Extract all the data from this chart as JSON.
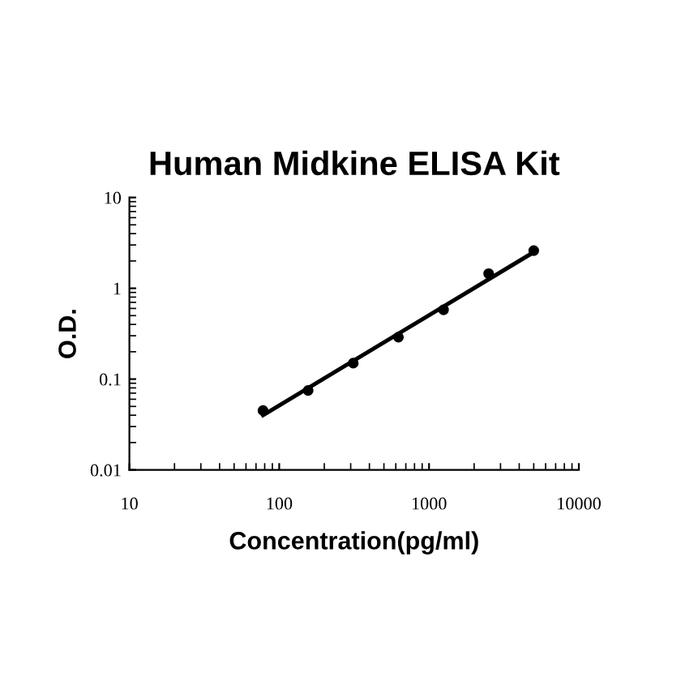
{
  "chart_data": {
    "type": "scatter",
    "title": "Human Midkine ELISA Kit",
    "xlabel": "Concentration(pg/ml)",
    "ylabel": "O.D.",
    "log": "xy",
    "xlim": [
      10,
      10000
    ],
    "ylim": [
      0.01,
      10
    ],
    "xticks": [
      10,
      100,
      1000,
      10000
    ],
    "yticks": [
      0.01,
      0.1,
      1,
      10
    ],
    "grid": false,
    "series": [
      {
        "marker": "circle",
        "color": "#000000",
        "x": [
          78,
          156,
          312,
          625,
          1250,
          2500,
          5000
        ],
        "values": [
          0.045,
          0.075,
          0.15,
          0.29,
          0.58,
          1.45,
          2.6
        ]
      },
      {
        "type": "line",
        "marker": "none",
        "color": "#000000",
        "x": [
          78,
          5000
        ],
        "values": [
          0.04,
          2.5
        ]
      }
    ]
  }
}
